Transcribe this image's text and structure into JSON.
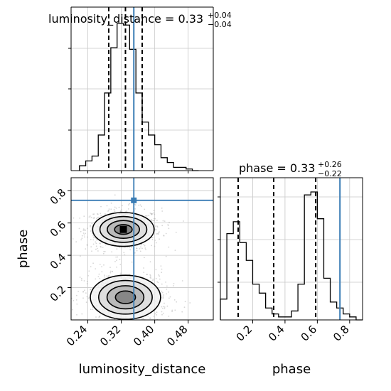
{
  "figure": {
    "title_lum": "luminosity_distance = 0.33",
    "title_lum_sup": "+0.04",
    "title_lum_sub": "−0.04",
    "title_phase": "phase = 0.33",
    "title_phase_sup": "+0.26",
    "title_phase_sub": "−0.22",
    "xlabel_lum": "luminosity_distance",
    "xlabel_phase": "phase",
    "ylabel_phase": "phase"
  },
  "colors": {
    "truth": "#3b7db5",
    "hist": "#000000",
    "grid": "#c8c8c8",
    "points": "#b4b4b4"
  },
  "chart_data": [
    {
      "type": "histogram",
      "parameter": "luminosity_distance",
      "xlim": [
        0.2,
        0.54
      ],
      "grid": true,
      "bin_edges": [
        0.22,
        0.235,
        0.25,
        0.265,
        0.28,
        0.295,
        0.31,
        0.325,
        0.34,
        0.355,
        0.37,
        0.385,
        0.4,
        0.415,
        0.43,
        0.445,
        0.46,
        0.475,
        0.49,
        0.505
      ],
      "counts": [
        3,
        6,
        9,
        22,
        48,
        76,
        91,
        90,
        75,
        48,
        30,
        22,
        16,
        8,
        5,
        2,
        2,
        1,
        0
      ],
      "quantiles": [
        0.29,
        0.33,
        0.37
      ],
      "truth": 0.35
    },
    {
      "type": "histogram",
      "parameter": "phase",
      "xlim": [
        0.0,
        0.88
      ],
      "grid": true,
      "x_ticks": [
        0.2,
        0.4,
        0.6,
        0.8
      ],
      "x_tick_labels": [
        "0.2",
        "0.4",
        "0.6",
        "0.8"
      ],
      "bin_edges": [
        0.0,
        0.04,
        0.08,
        0.12,
        0.16,
        0.2,
        0.24,
        0.28,
        0.32,
        0.36,
        0.4,
        0.44,
        0.48,
        0.52,
        0.56,
        0.6,
        0.64,
        0.68,
        0.72,
        0.76,
        0.8,
        0.84,
        0.88
      ],
      "counts": [
        7,
        29,
        33,
        26,
        20,
        12,
        9,
        4,
        2,
        1,
        1,
        3,
        12,
        42,
        43,
        34,
        14,
        6,
        4,
        2,
        1,
        0
      ],
      "quantiles": [
        0.11,
        0.33,
        0.59
      ],
      "truth": 0.74
    },
    {
      "type": "2d_density",
      "x_parameter": "luminosity_distance",
      "y_parameter": "phase",
      "xlim": [
        0.2,
        0.54
      ],
      "ylim": [
        0.0,
        0.88
      ],
      "grid": true,
      "x_ticks": [
        0.24,
        0.32,
        0.4,
        0.48
      ],
      "x_tick_labels": [
        "0.24",
        "0.32",
        "0.40",
        "0.48"
      ],
      "y_ticks": [
        0.2,
        0.4,
        0.6,
        0.8
      ],
      "y_tick_labels": [
        "0.2",
        "0.4",
        "0.6",
        "0.8"
      ],
      "modes": [
        {
          "center": [
            0.325,
            0.56
          ],
          "spread": [
            0.035,
            0.05
          ],
          "weight": 0.55
        },
        {
          "center": [
            0.33,
            0.14
          ],
          "spread": [
            0.04,
            0.065
          ],
          "weight": 0.45
        }
      ],
      "truth": [
        0.35,
        0.74
      ]
    }
  ]
}
